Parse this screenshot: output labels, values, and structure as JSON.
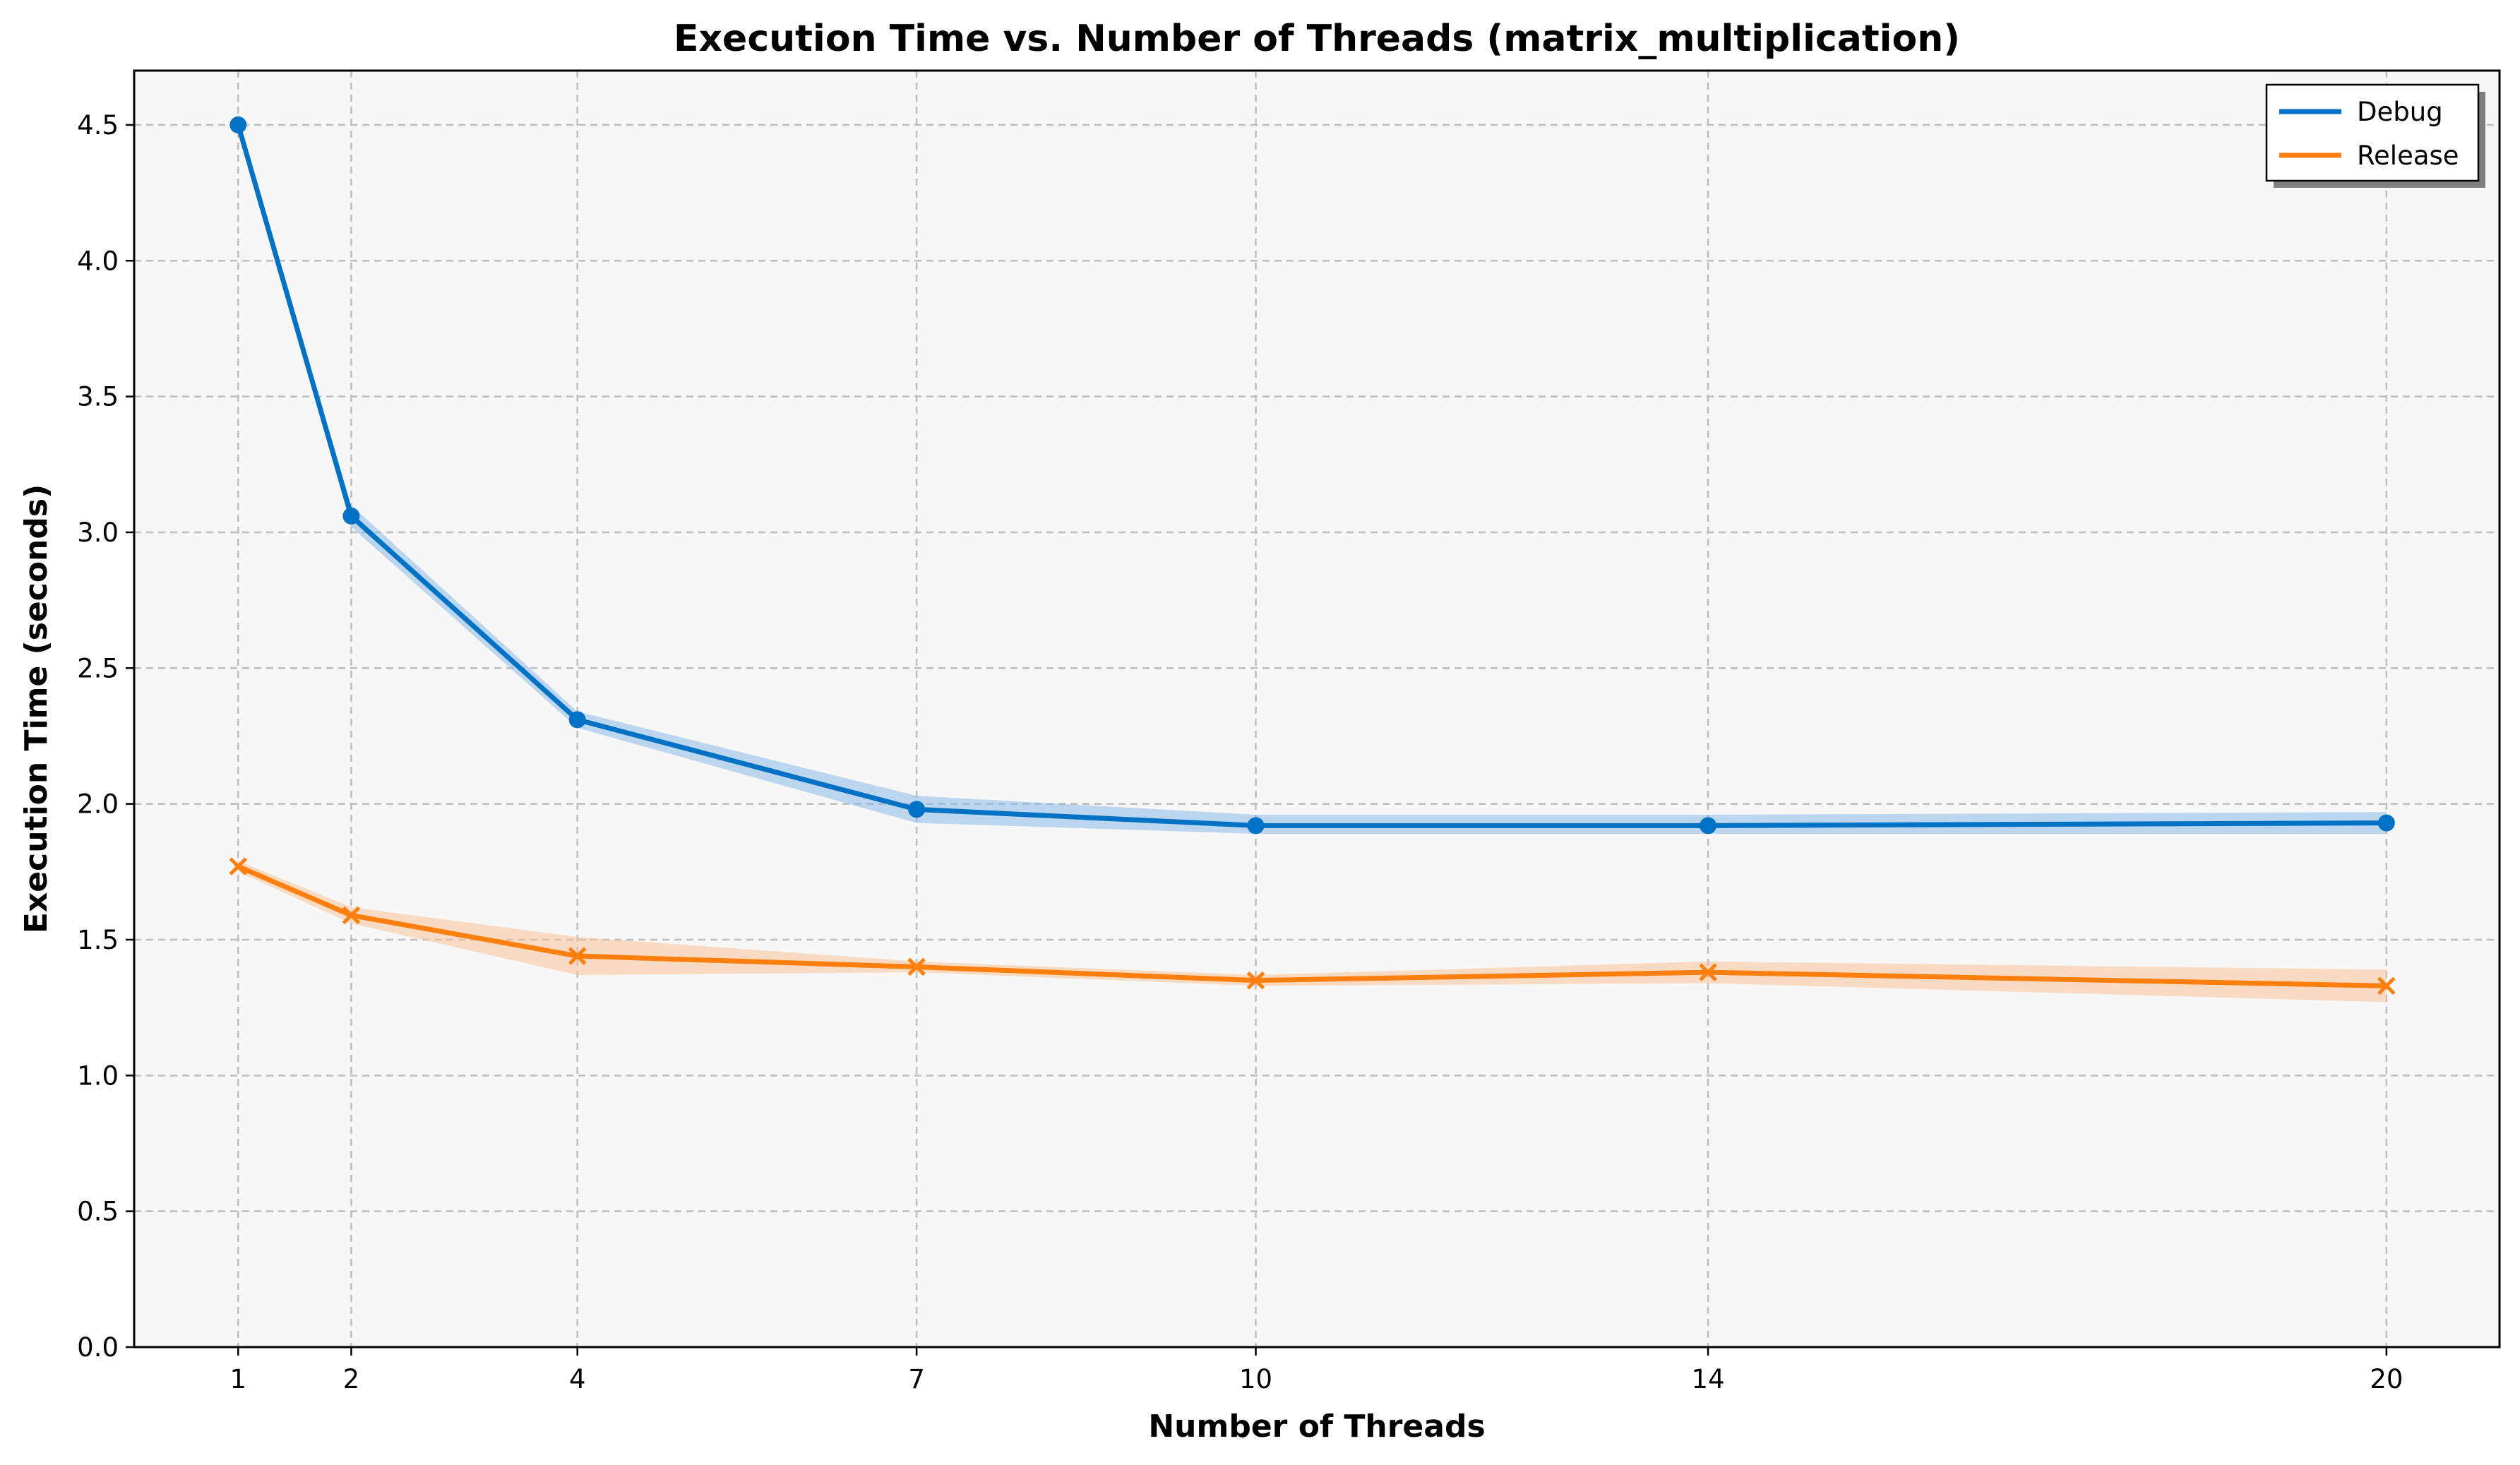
{
  "chart_data": {
    "type": "line",
    "title": "Execution Time vs. Number of Threads (matrix_multiplication)",
    "xlabel": "Number of Threads",
    "ylabel": "Execution Time (seconds)",
    "x": [
      1,
      2,
      4,
      7,
      10,
      14,
      20
    ],
    "xticks": [
      "1",
      "2",
      "4",
      "7",
      "10",
      "14",
      "20"
    ],
    "xlim": [
      0.08,
      21.0
    ],
    "ylim": [
      0,
      4.7
    ],
    "yticks": [
      "0.0",
      "0.5",
      "1.0",
      "1.5",
      "2.0",
      "2.5",
      "3.0",
      "3.5",
      "4.0",
      "4.5"
    ],
    "grid": true,
    "legend_position": "top-right",
    "background_color": "#f7f7f7",
    "series": [
      {
        "name": "Debug",
        "color": "#0072c6",
        "band_color": "#7fb6e6",
        "marker": "circle",
        "values": [
          4.5,
          3.06,
          2.31,
          1.98,
          1.92,
          1.92,
          1.93
        ],
        "lower": [
          4.49,
          3.02,
          2.28,
          1.93,
          1.89,
          1.89,
          1.89
        ],
        "upper": [
          4.51,
          3.1,
          2.34,
          2.03,
          1.96,
          1.96,
          1.97
        ]
      },
      {
        "name": "Release",
        "color": "#ff7f0e",
        "band_color": "#fbc08f",
        "marker": "x",
        "values": [
          1.77,
          1.59,
          1.44,
          1.4,
          1.35,
          1.38,
          1.33
        ],
        "lower": [
          1.75,
          1.56,
          1.37,
          1.38,
          1.33,
          1.34,
          1.27
        ],
        "upper": [
          1.79,
          1.62,
          1.51,
          1.42,
          1.37,
          1.42,
          1.39
        ]
      }
    ]
  }
}
